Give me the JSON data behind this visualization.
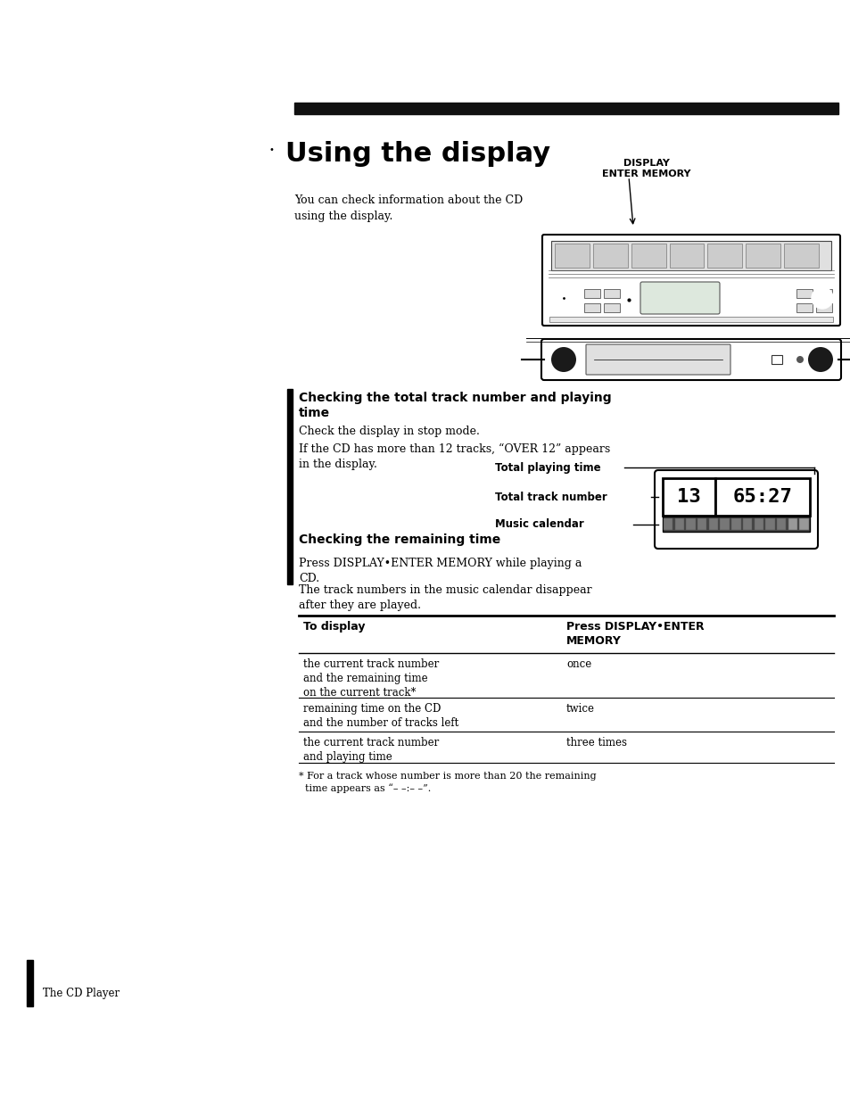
{
  "title": "Using the display",
  "section_header": "The CD Player",
  "bg_color": "#ffffff",
  "text_color": "#000000",
  "intro_text": "You can check information about the CD\nusing the display.",
  "display_label": "DISPLAY\nENTER MEMORY",
  "section1_title": "Checking the total track number and playing\ntime",
  "section1_p1": "Check the display in stop mode.",
  "section1_p2": "If the CD has more than 12 tracks, “OVER 12” appears\nin the display.",
  "label_total_playing": "Total playing time",
  "label_total_track": "Total track number",
  "label_music_calendar": "Music calendar",
  "section2_title": "Checking the remaining time",
  "section2_p1": "Press DISPLAY•ENTER MEMORY while playing a\nCD.",
  "section2_p2": "The track numbers in the music calendar disappear\nafter they are played.",
  "table_header_col1": "To display",
  "table_header_col2": "Press DISPLAY•ENTER\nMEMORY",
  "table_rows": [
    [
      "the current track number\nand the remaining time\non the current track*",
      "once"
    ],
    [
      "remaining time on the CD\nand the number of tracks left",
      "twice"
    ],
    [
      "the current track number\nand playing time",
      "three times"
    ]
  ],
  "footnote": "* For a track whose number is more than 20 the remaining\n  time appears as “– –:– –”.",
  "bottom_label": "The CD Player",
  "black_bar_color": "#111111",
  "page_width": 9.54,
  "page_height": 12.33
}
